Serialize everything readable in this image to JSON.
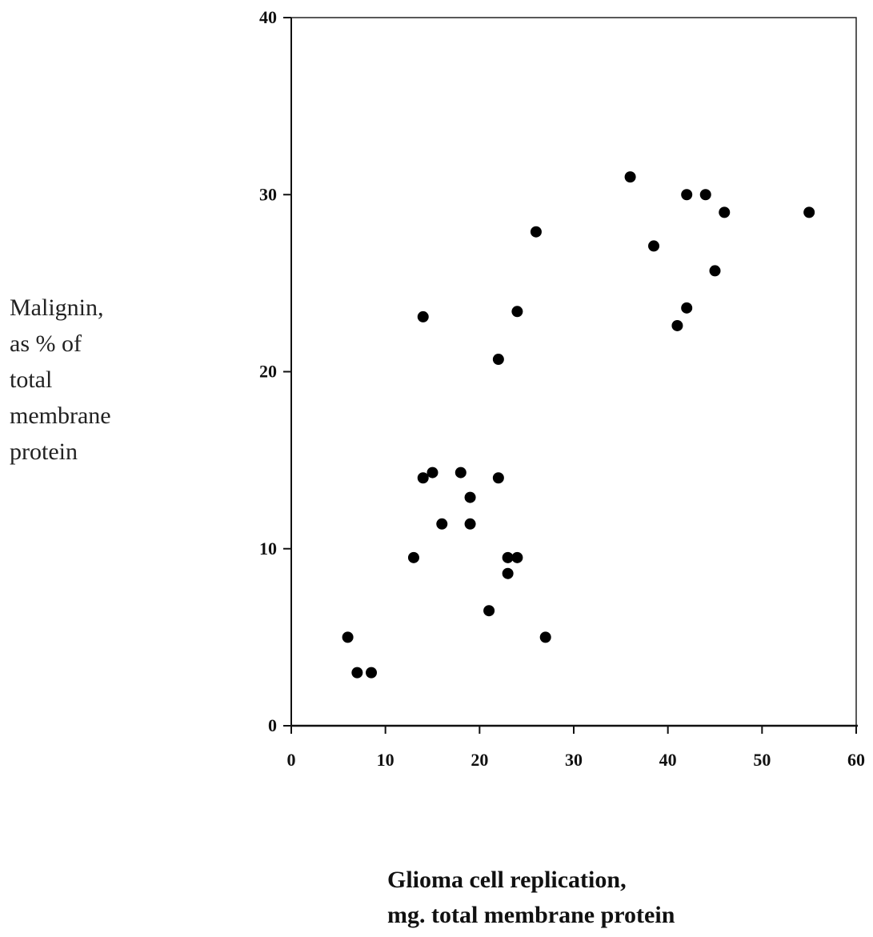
{
  "chart_data": {
    "type": "scatter",
    "title": "",
    "xlabel_lines": [
      "Glioma cell replication,",
      "mg. total membrane protein"
    ],
    "ylabel_lines": [
      "Malignin,",
      "as % of",
      "total",
      "membrane",
      "protein"
    ],
    "xlim": [
      0,
      60
    ],
    "ylim": [
      0,
      40
    ],
    "x_ticks": [
      0,
      10,
      20,
      30,
      40,
      50,
      60
    ],
    "y_ticks": [
      0,
      10,
      20,
      30,
      40
    ],
    "x_tick_labels": [
      "0",
      "10",
      "20",
      "30",
      "40",
      "50",
      "60"
    ],
    "y_tick_labels": [
      "0",
      "10",
      "20",
      "30",
      "40"
    ],
    "grid": false,
    "legend": "none",
    "marker_color": "#000000",
    "points": [
      {
        "x": 6,
        "y": 5
      },
      {
        "x": 7,
        "y": 3
      },
      {
        "x": 8.5,
        "y": 3
      },
      {
        "x": 13,
        "y": 9.5
      },
      {
        "x": 14,
        "y": 14
      },
      {
        "x": 15,
        "y": 14.3
      },
      {
        "x": 16,
        "y": 11.4
      },
      {
        "x": 18,
        "y": 14.3
      },
      {
        "x": 19,
        "y": 12.9
      },
      {
        "x": 19,
        "y": 11.4
      },
      {
        "x": 21,
        "y": 6.5
      },
      {
        "x": 22,
        "y": 14
      },
      {
        "x": 23,
        "y": 9.5
      },
      {
        "x": 24,
        "y": 9.5
      },
      {
        "x": 23,
        "y": 8.6
      },
      {
        "x": 27,
        "y": 5
      },
      {
        "x": 14,
        "y": 23.1
      },
      {
        "x": 22,
        "y": 20.7
      },
      {
        "x": 24,
        "y": 23.4
      },
      {
        "x": 26,
        "y": 27.9
      },
      {
        "x": 36,
        "y": 31
      },
      {
        "x": 38.5,
        "y": 27.1
      },
      {
        "x": 41,
        "y": 22.6
      },
      {
        "x": 42,
        "y": 23.6
      },
      {
        "x": 42,
        "y": 30
      },
      {
        "x": 44,
        "y": 30
      },
      {
        "x": 45,
        "y": 25.7
      },
      {
        "x": 46,
        "y": 29
      },
      {
        "x": 55,
        "y": 29
      }
    ]
  }
}
